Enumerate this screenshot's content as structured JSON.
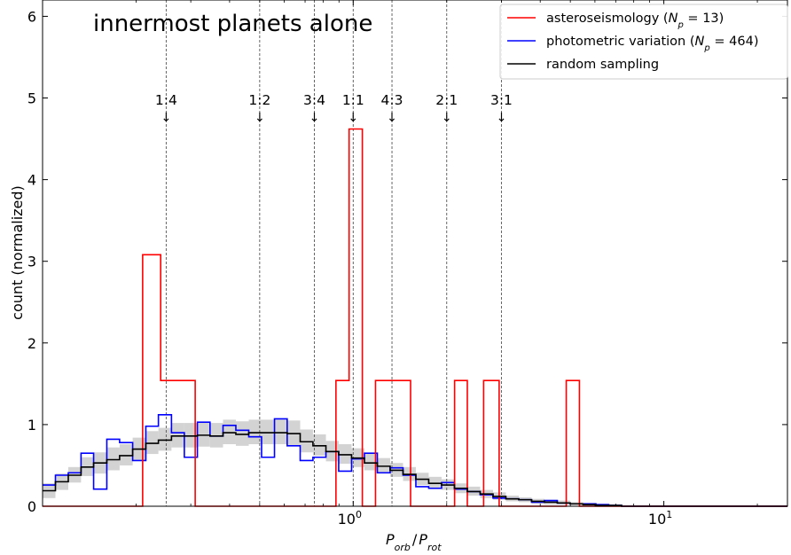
{
  "chart_data": {
    "type": "line",
    "title": "innermost planets alone",
    "xlabel_main": "P",
    "xlabel_sub1": "orb",
    "xlabel_sep": "/",
    "xlabel_sub2": "rot",
    "ylabel": "count (normalized)",
    "xscale": "log",
    "xlim": [
      0.1,
      25
    ],
    "ylim": [
      0,
      6.2
    ],
    "x_ticks": [
      {
        "value": 1,
        "base": "10",
        "exp": "0"
      },
      {
        "value": 10,
        "base": "10",
        "exp": "1"
      }
    ],
    "y_ticks": [
      0,
      1,
      2,
      3,
      4,
      5,
      6
    ],
    "legend_position": "top-right",
    "resonances": [
      {
        "label": "1:4",
        "x": 0.25
      },
      {
        "label": "1:2",
        "x": 0.5
      },
      {
        "label": "3:4",
        "x": 0.75
      },
      {
        "label": "1:1",
        "x": 1.0
      },
      {
        "label": "4:3",
        "x": 1.333
      },
      {
        "label": "2:1",
        "x": 2.0
      },
      {
        "label": "3:1",
        "x": 3.0
      }
    ],
    "resonance_arrow_glyph": "↓",
    "series": [
      {
        "name": "asteroseismology",
        "legend_np": "13",
        "color": "#ff0000",
        "edges": [
          0.1,
          0.21,
          0.24,
          0.31,
          0.88,
          0.97,
          1.07,
          1.18,
          1.53,
          2.12,
          2.33,
          2.63,
          2.95,
          4.85,
          5.35,
          25
        ],
        "values": [
          0,
          3.08,
          1.54,
          0,
          1.54,
          4.62,
          0,
          1.54,
          0,
          1.54,
          0,
          1.54,
          0,
          1.54,
          0
        ]
      },
      {
        "name": "photometric variation",
        "legend_np": "464",
        "color": "#0000ff",
        "edges": [
          0.1,
          0.11,
          0.121,
          0.133,
          0.146,
          0.161,
          0.177,
          0.195,
          0.215,
          0.236,
          0.26,
          0.286,
          0.315,
          0.346,
          0.381,
          0.419,
          0.461,
          0.507,
          0.558,
          0.613,
          0.675,
          0.742,
          0.817,
          0.898,
          0.988,
          1.087,
          1.196,
          1.315,
          1.447,
          1.591,
          1.75,
          1.925,
          2.118,
          2.33,
          2.563,
          2.819,
          3.101,
          3.411,
          3.752,
          4.127,
          4.54,
          4.994,
          5.493,
          6.043,
          6.647,
          7.312,
          25
        ],
        "values": [
          0.26,
          0.38,
          0.41,
          0.65,
          0.21,
          0.82,
          0.78,
          0.56,
          0.98,
          1.12,
          0.9,
          0.6,
          1.03,
          0.86,
          0.99,
          0.93,
          0.85,
          0.6,
          1.07,
          0.74,
          0.56,
          0.6,
          0.67,
          0.43,
          0.58,
          0.65,
          0.41,
          0.47,
          0.38,
          0.24,
          0.22,
          0.29,
          0.21,
          0.18,
          0.14,
          0.1,
          0.09,
          0.08,
          0.05,
          0.07,
          0.04,
          0.03,
          0.03,
          0.02,
          0.01,
          0
        ]
      },
      {
        "name": "random sampling",
        "color": "#000000",
        "edges": [
          0.1,
          0.11,
          0.121,
          0.133,
          0.146,
          0.161,
          0.177,
          0.195,
          0.215,
          0.236,
          0.26,
          0.286,
          0.315,
          0.346,
          0.381,
          0.419,
          0.461,
          0.507,
          0.558,
          0.613,
          0.675,
          0.742,
          0.817,
          0.898,
          0.988,
          1.087,
          1.196,
          1.315,
          1.447,
          1.591,
          1.75,
          1.925,
          2.118,
          2.33,
          2.563,
          2.819,
          3.101,
          3.411,
          3.752,
          4.127,
          4.54,
          4.994,
          5.493,
          6.043,
          6.647,
          7.312,
          25
        ],
        "values": [
          0.19,
          0.3,
          0.38,
          0.48,
          0.53,
          0.57,
          0.62,
          0.7,
          0.77,
          0.81,
          0.86,
          0.86,
          0.87,
          0.86,
          0.9,
          0.88,
          0.9,
          0.9,
          0.9,
          0.89,
          0.79,
          0.74,
          0.67,
          0.63,
          0.59,
          0.53,
          0.49,
          0.44,
          0.39,
          0.33,
          0.28,
          0.26,
          0.22,
          0.18,
          0.15,
          0.12,
          0.09,
          0.08,
          0.06,
          0.05,
          0.04,
          0.03,
          0.02,
          0.01,
          0.01,
          0
        ],
        "band_low": [
          0.1,
          0.2,
          0.29,
          0.37,
          0.4,
          0.44,
          0.5,
          0.57,
          0.64,
          0.68,
          0.72,
          0.72,
          0.73,
          0.72,
          0.76,
          0.74,
          0.76,
          0.76,
          0.76,
          0.75,
          0.66,
          0.62,
          0.55,
          0.52,
          0.48,
          0.44,
          0.4,
          0.36,
          0.31,
          0.26,
          0.21,
          0.2,
          0.16,
          0.13,
          0.1,
          0.08,
          0.06,
          0.05,
          0.03,
          0.02,
          0.02,
          0.01,
          0.01,
          0,
          0,
          0
        ],
        "band_high": [
          0.28,
          0.4,
          0.48,
          0.6,
          0.66,
          0.72,
          0.76,
          0.84,
          0.92,
          0.96,
          1.02,
          1.02,
          1.03,
          1.02,
          1.06,
          1.04,
          1.06,
          1.06,
          1.06,
          1.05,
          0.94,
          0.88,
          0.8,
          0.76,
          0.71,
          0.64,
          0.59,
          0.53,
          0.48,
          0.41,
          0.36,
          0.33,
          0.28,
          0.24,
          0.2,
          0.17,
          0.13,
          0.11,
          0.09,
          0.08,
          0.07,
          0.05,
          0.04,
          0.03,
          0.02,
          0
        ]
      }
    ]
  }
}
